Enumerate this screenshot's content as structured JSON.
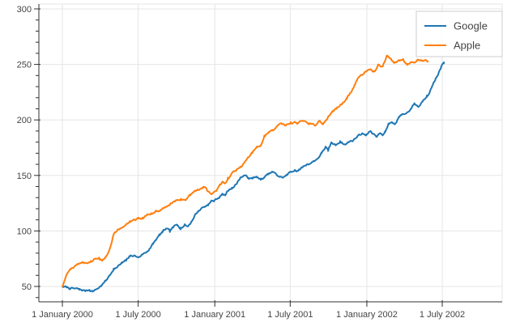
{
  "chart_data": {
    "type": "line",
    "title": "",
    "xlabel": "",
    "ylabel": "",
    "grid": true,
    "x_axis": {
      "kind": "datetime",
      "tick_labels": [
        "1 January 2000",
        "1 July 2000",
        "1 January 2001",
        "1 July 2001",
        "1 January 2002",
        "1 July 2002"
      ],
      "tick_days": [
        0,
        182,
        366,
        547,
        731,
        912
      ],
      "range_days": [
        -56,
        1056
      ]
    },
    "y_axis": {
      "major_ticks": [
        50,
        100,
        150,
        200,
        250,
        300
      ],
      "minor_tick_step": 10,
      "range": [
        36,
        305
      ]
    },
    "legend": {
      "position": "top_right",
      "entries": [
        "Google",
        "Apple"
      ]
    },
    "colors": {
      "google": "#1f77b4",
      "apple": "#ff7f0e",
      "grid": "#e5e5e5",
      "axis": "#303030",
      "tick_label": "#444444",
      "legend_border": "#cccccc"
    },
    "noise_amplitude": 1.5,
    "series": [
      {
        "name": "Google",
        "color": "#1f77b4",
        "points": [
          [
            0,
            50
          ],
          [
            16,
            48.5
          ],
          [
            29,
            48
          ],
          [
            41,
            47
          ],
          [
            55,
            46
          ],
          [
            65,
            47
          ],
          [
            74,
            46
          ],
          [
            84,
            48
          ],
          [
            94,
            51
          ],
          [
            104,
            55
          ],
          [
            114,
            60
          ],
          [
            123,
            66
          ],
          [
            133,
            68
          ],
          [
            143,
            71
          ],
          [
            153,
            73
          ],
          [
            162,
            77
          ],
          [
            172,
            78
          ],
          [
            182,
            76
          ],
          [
            192,
            79
          ],
          [
            202,
            81
          ],
          [
            209,
            84
          ],
          [
            217,
            88
          ],
          [
            225,
            92
          ],
          [
            233,
            96
          ],
          [
            241,
            99
          ],
          [
            250,
            102
          ],
          [
            258,
            99
          ],
          [
            266,
            103
          ],
          [
            276,
            105
          ],
          [
            284,
            103
          ],
          [
            294,
            106
          ],
          [
            301,
            104
          ],
          [
            309,
            108
          ],
          [
            319,
            115
          ],
          [
            327,
            118
          ],
          [
            335,
            121
          ],
          [
            342,
            122
          ],
          [
            350,
            124
          ],
          [
            358,
            127
          ],
          [
            364,
            127
          ],
          [
            378,
            131
          ],
          [
            384,
            133
          ],
          [
            391,
            132
          ],
          [
            397,
            136
          ],
          [
            407,
            139
          ],
          [
            417,
            142
          ],
          [
            427,
            148
          ],
          [
            436,
            150
          ],
          [
            446,
            148
          ],
          [
            456,
            147
          ],
          [
            466,
            149
          ],
          [
            476,
            146
          ],
          [
            485,
            148
          ],
          [
            495,
            151
          ],
          [
            505,
            153
          ],
          [
            515,
            150
          ],
          [
            528,
            148
          ],
          [
            538,
            150
          ],
          [
            548,
            153
          ],
          [
            558,
            155
          ],
          [
            566,
            154
          ],
          [
            575,
            157
          ],
          [
            587,
            160
          ],
          [
            599,
            162
          ],
          [
            612,
            165
          ],
          [
            622,
            170
          ],
          [
            632,
            176
          ],
          [
            638,
            172
          ],
          [
            646,
            179
          ],
          [
            656,
            177
          ],
          [
            667,
            181
          ],
          [
            679,
            178
          ],
          [
            687,
            180
          ],
          [
            699,
            182
          ],
          [
            710,
            186
          ],
          [
            720,
            188
          ],
          [
            730,
            187
          ],
          [
            740,
            190
          ],
          [
            748,
            187
          ],
          [
            755,
            185
          ],
          [
            763,
            188
          ],
          [
            769,
            186
          ],
          [
            775,
            189
          ],
          [
            783,
            196
          ],
          [
            791,
            198
          ],
          [
            798,
            196
          ],
          [
            808,
            203
          ],
          [
            816,
            205
          ],
          [
            826,
            206
          ],
          [
            836,
            210
          ],
          [
            845,
            215
          ],
          [
            855,
            212
          ],
          [
            865,
            217
          ],
          [
            875,
            222
          ],
          [
            887,
            230
          ],
          [
            896,
            237
          ],
          [
            906,
            245
          ],
          [
            912,
            250
          ],
          [
            916,
            251
          ]
        ]
      },
      {
        "name": "Apple",
        "color": "#ff7f0e",
        "points": [
          [
            0,
            50
          ],
          [
            6,
            56
          ],
          [
            12,
            62
          ],
          [
            20,
            66
          ],
          [
            29,
            68
          ],
          [
            39,
            70
          ],
          [
            49,
            72
          ],
          [
            59,
            71
          ],
          [
            68,
            73
          ],
          [
            78,
            75
          ],
          [
            88,
            76
          ],
          [
            96,
            74
          ],
          [
            104,
            77
          ],
          [
            112,
            82
          ],
          [
            117,
            88
          ],
          [
            123,
            97
          ],
          [
            133,
            101
          ],
          [
            143,
            103
          ],
          [
            153,
            106
          ],
          [
            162,
            109
          ],
          [
            172,
            110
          ],
          [
            182,
            111
          ],
          [
            192,
            112
          ],
          [
            202,
            114
          ],
          [
            213,
            116
          ],
          [
            225,
            118
          ],
          [
            237,
            119
          ],
          [
            249,
            122
          ],
          [
            260,
            125
          ],
          [
            272,
            127
          ],
          [
            284,
            129
          ],
          [
            296,
            128
          ],
          [
            307,
            132
          ],
          [
            319,
            136
          ],
          [
            329,
            137
          ],
          [
            339,
            139
          ],
          [
            348,
            136
          ],
          [
            358,
            133
          ],
          [
            364,
            135
          ],
          [
            371,
            137
          ],
          [
            378,
            142
          ],
          [
            384,
            144
          ],
          [
            391,
            143
          ],
          [
            397,
            148
          ],
          [
            407,
            152
          ],
          [
            417,
            154
          ],
          [
            427,
            158
          ],
          [
            436,
            161
          ],
          [
            446,
            166
          ],
          [
            456,
            170
          ],
          [
            466,
            175
          ],
          [
            476,
            177
          ],
          [
            485,
            186
          ],
          [
            495,
            189
          ],
          [
            505,
            191
          ],
          [
            515,
            194
          ],
          [
            526,
            197
          ],
          [
            534,
            195
          ],
          [
            548,
            198
          ],
          [
            564,
            197
          ],
          [
            577,
            199
          ],
          [
            593,
            197
          ],
          [
            607,
            195
          ],
          [
            616,
            199
          ],
          [
            626,
            197
          ],
          [
            638,
            203
          ],
          [
            648,
            207
          ],
          [
            658,
            210
          ],
          [
            671,
            214
          ],
          [
            683,
            219
          ],
          [
            695,
            226
          ],
          [
            703,
            232
          ],
          [
            710,
            238
          ],
          [
            724,
            242
          ],
          [
            734,
            245
          ],
          [
            750,
            244
          ],
          [
            759,
            250
          ],
          [
            769,
            248
          ],
          [
            779,
            257
          ],
          [
            789,
            255
          ],
          [
            798,
            252
          ],
          [
            808,
            254
          ],
          [
            818,
            255
          ],
          [
            828,
            250
          ],
          [
            838,
            252
          ],
          [
            847,
            252
          ],
          [
            857,
            254
          ],
          [
            867,
            253
          ],
          [
            877,
            253
          ]
        ]
      }
    ]
  }
}
